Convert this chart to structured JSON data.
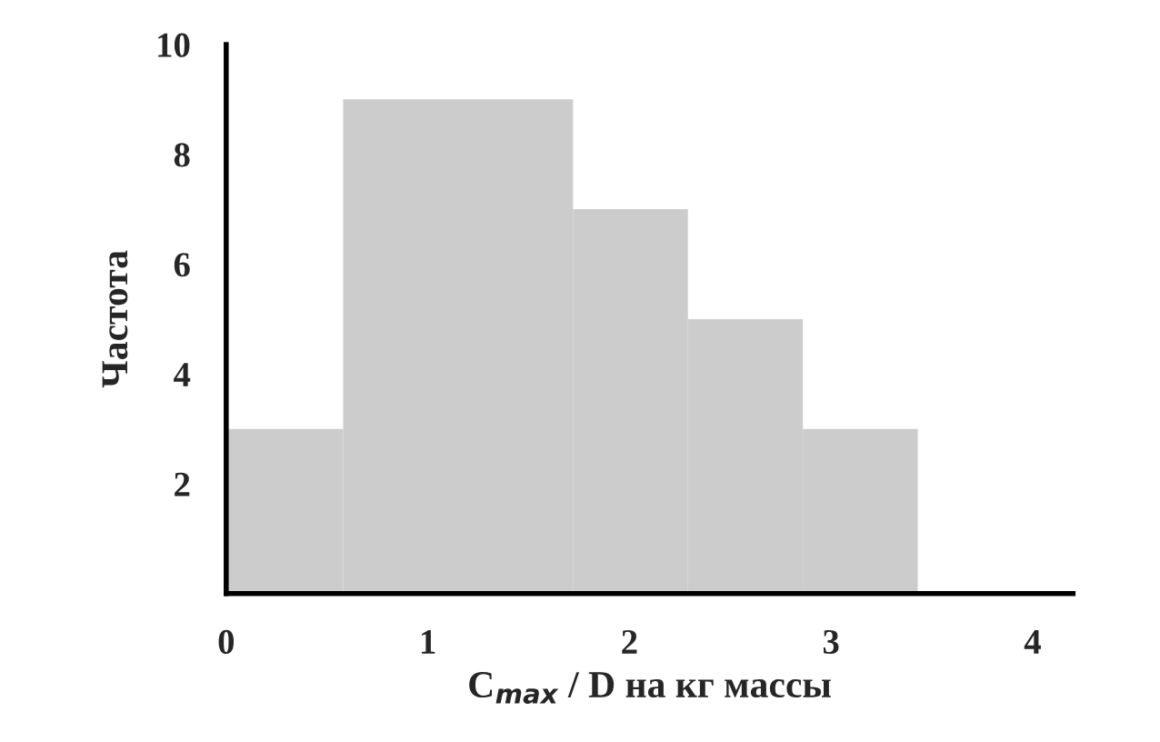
{
  "chart_data": {
    "type": "histogram",
    "xlabel": "C$_{max}$ / D на кг массы",
    "ylabel": "Частота",
    "bins": [
      0,
      0.58,
      1.72,
      2.29,
      2.86,
      3.43
    ],
    "values": [
      3,
      9,
      7,
      5,
      3
    ],
    "color": "#cccccc",
    "xlim": [
      0,
      4.2
    ],
    "xticks": [
      0,
      1,
      2,
      3,
      4
    ],
    "ylim": [
      0,
      10
    ],
    "yticks": [
      2,
      4,
      6,
      8,
      10
    ],
    "grid": false
  }
}
